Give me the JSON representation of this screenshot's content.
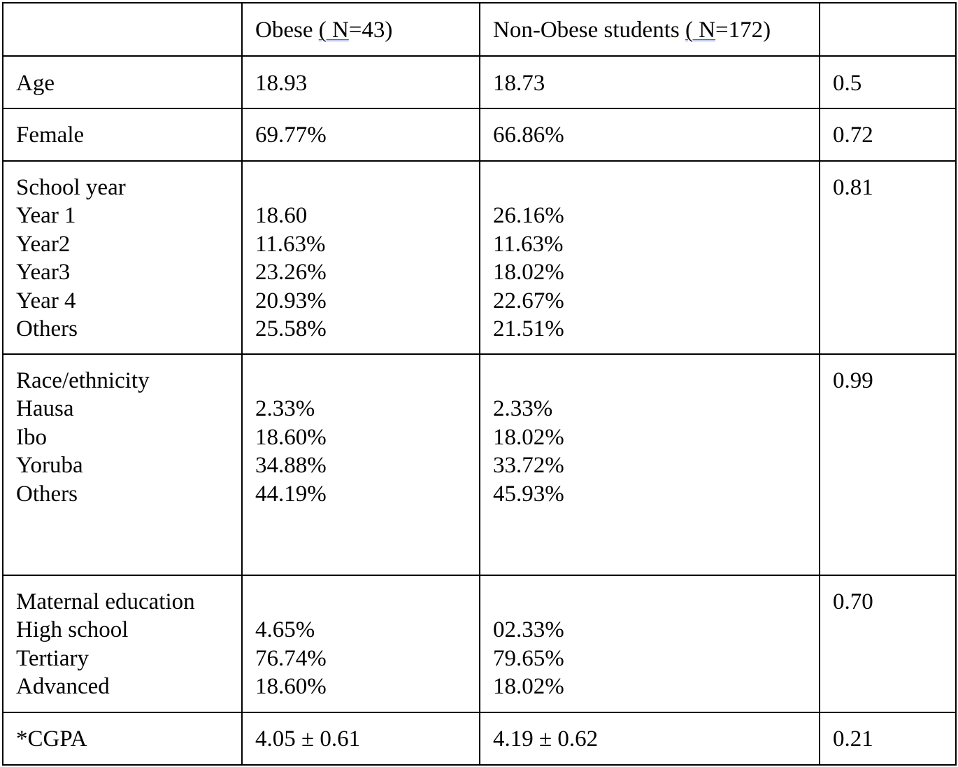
{
  "table": {
    "header": {
      "col1": "",
      "obese_prefix": "Obese ",
      "obese_n": "( N",
      "obese_suffix": "=43)",
      "nonobese_prefix": "Non-Obese students ",
      "nonobese_n": "( N",
      "nonobese_suffix": "=172)",
      "col4": ""
    },
    "age": {
      "label": "Age",
      "obese": "18.93",
      "non_obese": "18.73",
      "p": "0.5"
    },
    "female": {
      "label": "Female",
      "obese": "69.77%",
      "non_obese": "66.86%",
      "p": "0.72"
    },
    "school_year": {
      "label": "School year",
      "p": "0.81",
      "rows": [
        {
          "label": "Year 1",
          "obese": "18.60",
          "non_obese": "26.16%"
        },
        {
          "label": "Year2",
          "obese": "11.63%",
          "non_obese": "11.63%"
        },
        {
          "label": "Year3",
          "obese": "23.26%",
          "non_obese": "18.02%"
        },
        {
          "label": "Year 4",
          "obese": "20.93%",
          "non_obese": "22.67%"
        },
        {
          "label": "Others",
          "obese": "25.58%",
          "non_obese": "21.51%"
        }
      ]
    },
    "race": {
      "label": "Race/ethnicity",
      "p": "0.99",
      "rows": [
        {
          "label": "Hausa",
          "obese": "2.33%",
          "non_obese": "2.33%"
        },
        {
          "label": "Ibo",
          "obese": "18.60%",
          "non_obese": "18.02%"
        },
        {
          "label": "Yoruba",
          "obese": "34.88%",
          "non_obese": "33.72%"
        },
        {
          "label": "Others",
          "obese": "44.19%",
          "non_obese": "45.93%"
        }
      ]
    },
    "maternal_education": {
      "label": "Maternal education",
      "p": "0.70",
      "rows": [
        {
          "label": "High school",
          "obese": "4.65%",
          "non_obese": "02.33%"
        },
        {
          "label": "Tertiary",
          "obese": "76.74%",
          "non_obese": "79.65%"
        },
        {
          "label": "Advanced",
          "obese": "18.60%",
          "non_obese": "18.02%"
        }
      ]
    },
    "cgpa": {
      "label": "*CGPA",
      "obese": "4.05 ± 0.61",
      "non_obese": "4.19 ± 0.62",
      "p": "0.21"
    }
  },
  "colors": {
    "border": "#000000",
    "text": "#000000",
    "underline": "#3d6bd1"
  }
}
